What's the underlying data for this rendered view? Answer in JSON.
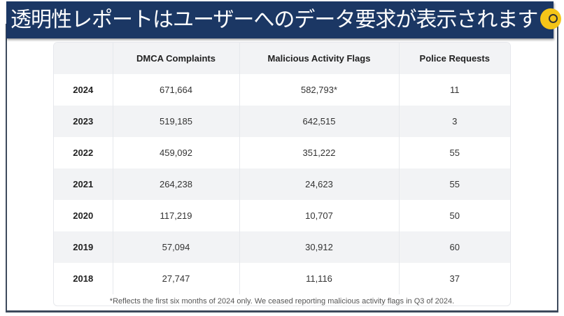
{
  "banner": {
    "title": "透明性レポートはユーザーへのデータ要求が表示されます",
    "emoji_icon": "face-with-monocle"
  },
  "table": {
    "headers": [
      "",
      "DMCA Complaints",
      "Malicious Activity Flags",
      "Police Requests"
    ],
    "rows": [
      [
        "2024",
        "671,664",
        "582,793*",
        "11"
      ],
      [
        "2023",
        "519,185",
        "642,515",
        "3"
      ],
      [
        "2022",
        "459,092",
        "351,222",
        "55"
      ],
      [
        "2021",
        "264,238",
        "24,623",
        "55"
      ],
      [
        "2020",
        "117,219",
        "10,707",
        "50"
      ],
      [
        "2019",
        "57,094",
        "30,912",
        "60"
      ],
      [
        "2018",
        "27,747",
        "11,116",
        "37"
      ]
    ],
    "footnote": "*Reflects the first six months of 2024 only. We ceased reporting malicious activity flags in Q3 of 2024."
  }
}
